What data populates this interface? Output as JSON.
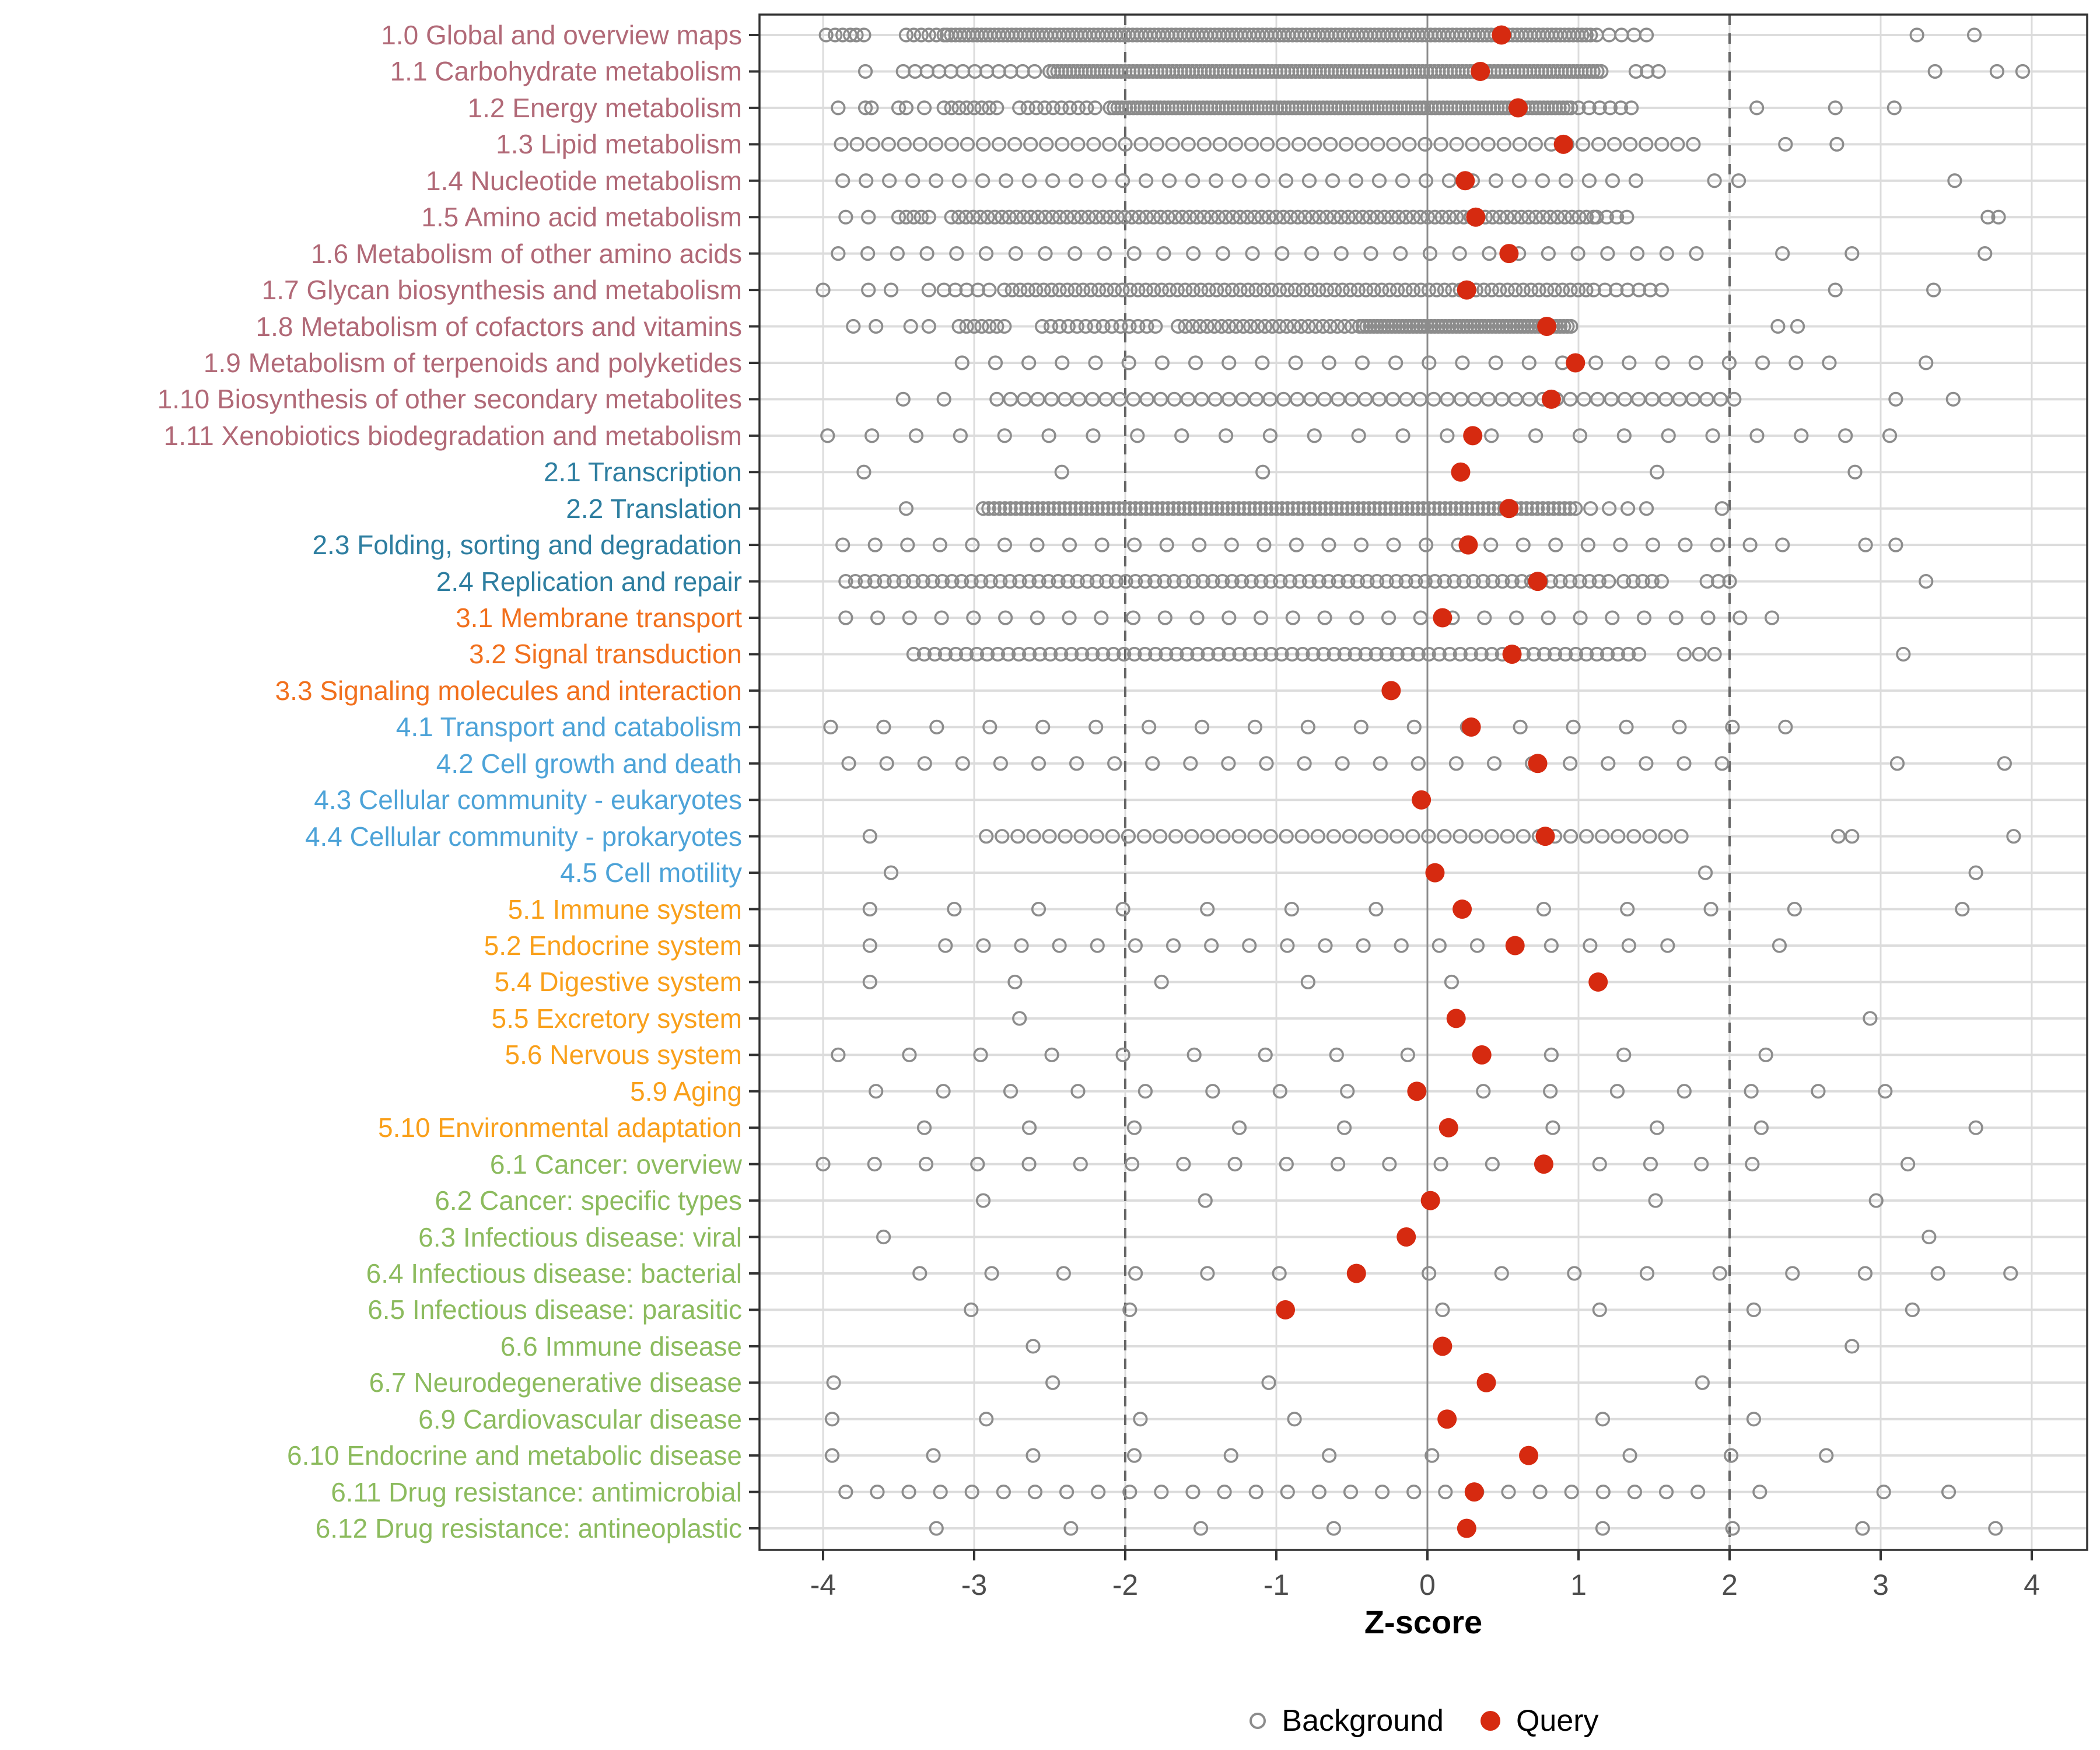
{
  "chart_data": {
    "type": "scatter",
    "variant": "horizontal-strip-dot-plot",
    "title": "",
    "xlabel": "Z-score",
    "ylabel": "",
    "x_ticks": [
      "-4",
      "-3",
      "-2",
      "-1",
      "0",
      "1",
      "2",
      "3",
      "4"
    ],
    "x_tick_values": [
      -4,
      -3,
      -2,
      -1,
      0,
      1,
      2,
      3,
      4
    ],
    "x_range": [
      -4.42,
      4.37
    ],
    "grid": "light gray horizontal line per category and vertical line per integer",
    "reference_lines": {
      "solid_at": 0,
      "dashed_at": [
        -2,
        2
      ]
    },
    "legend_position": "bottom-center",
    "legend": [
      {
        "label": "Background",
        "marker": "open-circle",
        "color": "#8c8c8c"
      },
      {
        "label": "Query",
        "marker": "filled-circle",
        "color": "#d62a10"
      }
    ],
    "group_colors": {
      "metabolism": "#b16977",
      "genetic": "#2e7ea0",
      "environmental": "#f1701d",
      "cellular": "#4da3d8",
      "organismal": "#f9a01b",
      "disease": "#8cbb5e"
    },
    "style": {
      "bg_point_stroke": "#8c8c8c",
      "query_point_fill": "#d62a10",
      "gridline_color": "#dcdcdc",
      "zero_line_color": "#8c8c8c",
      "dashed_line_color": "#666666",
      "panel_border_color": "#333333",
      "tick_color": "#333333",
      "tick_label_color": "#4d4d4d"
    },
    "rows": [
      {
        "label": "1.0 Global and overview maps",
        "group": "metabolism",
        "query": 0.49,
        "bg_segments": [
          [
            -3.45,
            -3.2,
            6
          ],
          [
            -3.18,
            1.08,
            150
          ],
          [
            1.12,
            1.45,
            5
          ]
        ],
        "bg_points": [
          -3.98,
          -3.92,
          -3.87,
          -3.82,
          -3.78,
          -3.73,
          3.24,
          3.62
        ]
      },
      {
        "label": "1.1 Carbohydrate metabolism",
        "group": "metabolism",
        "query": 0.35,
        "bg_segments": [
          [
            -3.47,
            -2.6,
            12
          ],
          [
            -2.5,
            1.15,
            140
          ],
          [
            1.38,
            1.53,
            3
          ]
        ],
        "bg_points": [
          -3.72,
          3.36,
          3.77,
          3.94
        ]
      },
      {
        "label": "1.2 Energy metabolism",
        "group": "metabolism",
        "query": 0.6,
        "bg_segments": [
          [
            -3.2,
            -2.85,
            8
          ],
          [
            -2.7,
            -2.2,
            10
          ],
          [
            -2.1,
            0.95,
            120
          ],
          [
            1.0,
            1.35,
            6
          ]
        ],
        "bg_points": [
          -3.9,
          -3.72,
          -3.68,
          -3.5,
          -3.45,
          -3.33,
          2.18,
          2.7,
          3.09
        ]
      },
      {
        "label": "1.3 Lipid metabolism",
        "group": "metabolism",
        "query": 0.9,
        "bg_segments": [
          [
            -3.88,
            1.76,
            55
          ]
        ],
        "bg_points": [
          2.37,
          2.71
        ]
      },
      {
        "label": "1.4 Nucleotide metabolism",
        "group": "metabolism",
        "query": 0.25,
        "bg_segments": [
          [
            -3.87,
            1.38,
            35
          ]
        ],
        "bg_points": [
          1.9,
          2.06,
          3.49
        ]
      },
      {
        "label": "1.5 Amino acid metabolism",
        "group": "metabolism",
        "query": 0.32,
        "bg_segments": [
          [
            -3.5,
            -3.3,
            5
          ],
          [
            -3.15,
            1.1,
            90
          ],
          [
            1.12,
            1.32,
            4
          ]
        ],
        "bg_points": [
          -3.85,
          -3.7,
          3.71,
          3.78
        ]
      },
      {
        "label": "1.6 Metabolism of other amino acids",
        "group": "metabolism",
        "query": 0.54,
        "bg_segments": [
          [
            -3.9,
            1.78,
            30
          ]
        ],
        "bg_points": [
          2.35,
          2.81,
          3.69
        ]
      },
      {
        "label": "1.7 Glycan biosynthesis and metabolism",
        "group": "metabolism",
        "query": 0.26,
        "bg_segments": [
          [
            -3.2,
            -2.9,
            5
          ],
          [
            -2.8,
            1.05,
            75
          ],
          [
            1.1,
            1.55,
            7
          ]
        ],
        "bg_points": [
          -4.0,
          -3.7,
          -3.55,
          -3.3,
          2.7,
          3.35
        ]
      },
      {
        "label": "1.8 Metabolism of cofactors and vitamins",
        "group": "metabolism",
        "query": 0.79,
        "bg_segments": [
          [
            -3.1,
            -2.8,
            7
          ],
          [
            -2.55,
            -1.8,
            14
          ],
          [
            -1.65,
            -0.5,
            25
          ],
          [
            -0.45,
            0.95,
            60
          ]
        ],
        "bg_points": [
          -3.8,
          -3.65,
          -3.42,
          -3.3,
          2.32,
          2.45
        ]
      },
      {
        "label": "1.9 Metabolism of terpenoids and polyketides",
        "group": "metabolism",
        "query": 0.98,
        "bg_segments": [
          [
            -3.08,
            2.66,
            27
          ]
        ],
        "bg_points": [
          3.3
        ]
      },
      {
        "label": "1.10 Biosynthesis of other secondary metabolites",
        "group": "metabolism",
        "query": 0.82,
        "bg_segments": [
          [
            -2.85,
            2.03,
            55
          ]
        ],
        "bg_points": [
          -3.47,
          -3.2,
          3.1,
          3.48
        ]
      },
      {
        "label": "1.11 Xenobiotics biodegradation and metabolism",
        "group": "metabolism",
        "query": 0.3,
        "bg_segments": [
          [
            -3.97,
            3.06,
            25
          ]
        ],
        "bg_points": []
      },
      {
        "label": "2.1 Transcription",
        "group": "genetic",
        "query": 0.22,
        "bg_segments": [],
        "bg_points": [
          -3.73,
          -2.42,
          -1.09,
          1.52,
          2.83
        ]
      },
      {
        "label": "2.2 Translation",
        "group": "genetic",
        "query": 0.54,
        "bg_segments": [
          [
            -2.94,
            0.98,
            110
          ],
          [
            1.08,
            1.45,
            4
          ]
        ],
        "bg_points": [
          -3.45,
          1.95
        ]
      },
      {
        "label": "2.3 Folding, sorting and degradation",
        "group": "genetic",
        "query": 0.27,
        "bg_segments": [
          [
            -3.87,
            2.35,
            30
          ]
        ],
        "bg_points": [
          2.9,
          3.1
        ]
      },
      {
        "label": "2.4 Replication and repair",
        "group": "genetic",
        "query": 0.73,
        "bg_segments": [
          [
            -3.85,
            1.2,
            80
          ],
          [
            1.3,
            1.55,
            5
          ],
          [
            1.85,
            2.0,
            3
          ]
        ],
        "bg_points": [
          3.3
        ]
      },
      {
        "label": "3.1 Membrane transport",
        "group": "environmental",
        "query": 0.1,
        "bg_segments": [
          [
            -3.85,
            2.28,
            30
          ]
        ],
        "bg_points": []
      },
      {
        "label": "3.2 Signal transduction",
        "group": "environmental",
        "query": 0.56,
        "bg_segments": [
          [
            -3.4,
            1.4,
            70
          ],
          [
            1.7,
            1.9,
            3
          ]
        ],
        "bg_points": [
          3.15
        ]
      },
      {
        "label": "3.3 Signaling molecules and interaction",
        "group": "environmental",
        "query": -0.24,
        "bg_segments": [],
        "bg_points": []
      },
      {
        "label": "4.1 Transport and catabolism",
        "group": "cellular",
        "query": 0.29,
        "bg_segments": [
          [
            -3.95,
            2.37,
            19
          ]
        ],
        "bg_points": []
      },
      {
        "label": "4.2 Cell growth and death",
        "group": "cellular",
        "query": 0.73,
        "bg_segments": [
          [
            -3.83,
            1.95,
            24
          ]
        ],
        "bg_points": [
          3.11,
          3.82
        ]
      },
      {
        "label": "4.3 Cellular community - eukaryotes",
        "group": "cellular",
        "query": -0.04,
        "bg_segments": [],
        "bg_points": []
      },
      {
        "label": "4.4 Cellular community - prokaryotes",
        "group": "cellular",
        "query": 0.78,
        "bg_segments": [
          [
            -2.92,
            1.68,
            45
          ]
        ],
        "bg_points": [
          -3.69,
          2.72,
          2.81,
          3.88
        ]
      },
      {
        "label": "4.5 Cell motility",
        "group": "cellular",
        "query": 0.05,
        "bg_segments": [],
        "bg_points": [
          -3.55,
          1.84,
          3.63
        ]
      },
      {
        "label": "5.1 Immune system",
        "group": "organismal",
        "query": 0.23,
        "bg_segments": [
          [
            -3.69,
            -0.34,
            7
          ],
          [
            0.77,
            2.43,
            4
          ]
        ],
        "bg_points": [
          3.54
        ]
      },
      {
        "label": "5.2 Endocrine system",
        "group": "organismal",
        "query": 0.58,
        "bg_segments": [
          [
            -3.19,
            0.33,
            15
          ],
          [
            0.82,
            1.59,
            4
          ]
        ],
        "bg_points": [
          -3.69,
          2.33
        ]
      },
      {
        "label": "5.4 Digestive system",
        "group": "organismal",
        "query": 1.13,
        "bg_segments": [],
        "bg_points": [
          -3.69,
          -2.73,
          -1.76,
          -0.79,
          0.16
        ]
      },
      {
        "label": "5.5 Excretory system",
        "group": "organismal",
        "query": 0.19,
        "bg_segments": [],
        "bg_points": [
          -2.7,
          2.93
        ]
      },
      {
        "label": "5.6 Nervous system",
        "group": "organismal",
        "query": 0.36,
        "bg_segments": [
          [
            -3.9,
            -0.13,
            9
          ]
        ],
        "bg_points": [
          0.82,
          1.3,
          2.24
        ]
      },
      {
        "label": "5.9 Aging",
        "group": "organismal",
        "query": -0.07,
        "bg_segments": [
          [
            -3.65,
            -0.53,
            8
          ],
          [
            0.37,
            3.03,
            7
          ]
        ],
        "bg_points": []
      },
      {
        "label": "5.10 Environmental adaptation",
        "group": "organismal",
        "query": 0.14,
        "bg_segments": [
          [
            -3.33,
            -0.55,
            5
          ],
          [
            0.83,
            2.21,
            3
          ]
        ],
        "bg_points": [
          3.63
        ]
      },
      {
        "label": "6.1 Cancer: overview",
        "group": "disease",
        "query": 0.77,
        "bg_segments": [
          [
            -4.0,
            0.43,
            14
          ],
          [
            1.14,
            2.15,
            4
          ]
        ],
        "bg_points": [
          3.18
        ]
      },
      {
        "label": "6.2 Cancer: specific types",
        "group": "disease",
        "query": 0.02,
        "bg_segments": [],
        "bg_points": [
          -2.94,
          -1.47,
          1.51,
          2.97
        ]
      },
      {
        "label": "6.3 Infectious disease: viral",
        "group": "disease",
        "query": -0.14,
        "bg_segments": [],
        "bg_points": [
          -3.6,
          3.32
        ]
      },
      {
        "label": "6.4 Infectious disease: bacterial",
        "group": "disease",
        "query": -0.47,
        "bg_segments": [
          [
            -3.36,
            -0.98,
            6
          ],
          [
            0.01,
            3.86,
            9
          ]
        ],
        "bg_points": []
      },
      {
        "label": "6.5 Infectious disease: parasitic",
        "group": "disease",
        "query": -0.94,
        "bg_segments": [],
        "bg_points": [
          -3.02,
          -1.97,
          0.1,
          1.14,
          2.16,
          3.21
        ]
      },
      {
        "label": "6.6 Immune disease",
        "group": "disease",
        "query": 0.1,
        "bg_segments": [],
        "bg_points": [
          -2.61,
          2.81
        ]
      },
      {
        "label": "6.7 Neurodegenerative disease",
        "group": "disease",
        "query": 0.39,
        "bg_segments": [],
        "bg_points": [
          -3.93,
          -2.48,
          -1.05,
          1.82
        ]
      },
      {
        "label": "6.9 Cardiovascular disease",
        "group": "disease",
        "query": 0.13,
        "bg_segments": [],
        "bg_points": [
          -3.94,
          -2.92,
          -1.9,
          -0.88,
          1.16,
          2.16
        ]
      },
      {
        "label": "6.10 Endocrine and metabolic disease",
        "group": "disease",
        "query": 0.67,
        "bg_segments": [],
        "bg_points": [
          -3.94,
          -3.27,
          -2.61,
          -1.94,
          -1.3,
          -0.65,
          0.03,
          1.34,
          2.01,
          2.64
        ]
      },
      {
        "label": "6.11 Drug resistance: antimicrobial",
        "group": "disease",
        "query": 0.31,
        "bg_segments": [
          [
            -3.85,
            1.79,
            28
          ]
        ],
        "bg_points": [
          2.2,
          3.02,
          3.45
        ]
      },
      {
        "label": "6.12 Drug resistance: antineoplastic",
        "group": "disease",
        "query": 0.26,
        "bg_segments": [],
        "bg_points": [
          -3.25,
          -2.36,
          -1.5,
          -0.62,
          1.16,
          2.02,
          2.88,
          3.76
        ]
      }
    ]
  }
}
